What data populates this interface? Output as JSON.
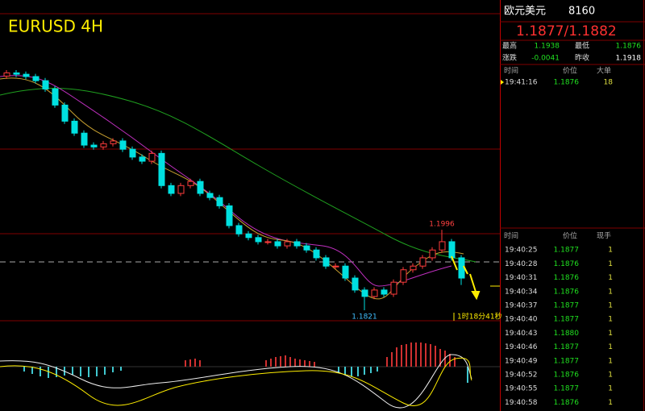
{
  "header": {
    "title": "EURUSD 4H"
  },
  "chart": {
    "candles": [
      [
        1.233,
        1.2343,
        1.2324,
        1.2337
      ],
      [
        1.2337,
        1.2343,
        1.2328,
        1.2334
      ],
      [
        1.2334,
        1.234,
        1.2323,
        1.2329
      ],
      [
        1.2329,
        1.2335,
        1.2314,
        1.232
      ],
      [
        1.232,
        1.2326,
        1.2296,
        1.2302
      ],
      [
        1.2302,
        1.2308,
        1.2261,
        1.2267
      ],
      [
        1.2267,
        1.2273,
        1.2226,
        1.2232
      ],
      [
        1.2232,
        1.2238,
        1.22,
        1.2206
      ],
      [
        1.2206,
        1.2212,
        1.2174,
        1.218
      ],
      [
        1.218,
        1.2186,
        1.217,
        1.2176
      ],
      [
        1.2176,
        1.2189,
        1.217,
        1.2183
      ],
      [
        1.2183,
        1.2195,
        1.2177,
        1.2189
      ],
      [
        1.2189,
        1.2195,
        1.2165,
        1.2171
      ],
      [
        1.2171,
        1.2177,
        1.2148,
        1.2154
      ],
      [
        1.2154,
        1.216,
        1.2139,
        1.2145
      ],
      [
        1.2145,
        1.2168,
        1.2139,
        1.2162
      ],
      [
        1.2162,
        1.2168,
        1.2086,
        1.2092
      ],
      [
        1.2092,
        1.2098,
        1.2069,
        1.2075
      ],
      [
        1.2075,
        1.2098,
        1.2069,
        1.2092
      ],
      [
        1.2092,
        1.2107,
        1.2086,
        1.2101
      ],
      [
        1.2101,
        1.2107,
        1.2069,
        1.2075
      ],
      [
        1.2075,
        1.2081,
        1.206,
        1.2066
      ],
      [
        1.2066,
        1.2072,
        1.2042,
        1.2048
      ],
      [
        1.2048,
        1.2054,
        1.1999,
        1.2005
      ],
      [
        1.2005,
        1.2011,
        1.1981,
        1.1987
      ],
      [
        1.1987,
        1.1993,
        1.1973,
        1.1979
      ],
      [
        1.1979,
        1.1985,
        1.1964,
        1.197
      ],
      [
        1.197,
        1.1976,
        1.1964,
        1.197
      ],
      [
        1.197,
        1.1976,
        1.1955,
        1.1961
      ],
      [
        1.1961,
        1.1976,
        1.1955,
        1.197
      ],
      [
        1.197,
        1.1976,
        1.1955,
        1.1961
      ],
      [
        1.1961,
        1.1967,
        1.1946,
        1.1952
      ],
      [
        1.1952,
        1.1958,
        1.1929,
        1.1935
      ],
      [
        1.1935,
        1.1941,
        1.1911,
        1.1917
      ],
      [
        1.1917,
        1.1923,
        1.1911,
        1.1917
      ],
      [
        1.1917,
        1.1923,
        1.1885,
        1.1891
      ],
      [
        1.1891,
        1.1897,
        1.1859,
        1.1865
      ],
      [
        1.1865,
        1.1871,
        1.1821,
        1.1851
      ],
      [
        1.1851,
        1.1871,
        1.1845,
        1.1865
      ],
      [
        1.1865,
        1.1871,
        1.185,
        1.1856
      ],
      [
        1.1856,
        1.1888,
        1.185,
        1.1882
      ],
      [
        1.1882,
        1.1915,
        1.1876,
        1.1909
      ],
      [
        1.1909,
        1.1923,
        1.1903,
        1.1917
      ],
      [
        1.1917,
        1.1941,
        1.1911,
        1.1935
      ],
      [
        1.1935,
        1.1958,
        1.1929,
        1.1952
      ],
      [
        1.1952,
        1.1996,
        1.1946,
        1.197
      ],
      [
        1.197,
        1.1976,
        1.1929,
        1.1935
      ],
      [
        1.1935,
        1.1941,
        1.1876,
        1.1891
      ]
    ],
    "countdown": "1时18分41秒"
  },
  "quote": {
    "name": "欧元美元",
    "code": "8160",
    "price": "1.1877/1.1882",
    "stats": [
      [
        "最高",
        "1.1938",
        "最低",
        "1.1876"
      ],
      [
        "涨跌",
        "-0.0041",
        "昨收",
        "1.1918"
      ]
    ]
  },
  "big_orders": {
    "columns": [
      "时间",
      "价位",
      "大单"
    ],
    "rows": [
      [
        "19:41:16",
        "1.1876",
        "18"
      ]
    ]
  },
  "ticks": {
    "columns": [
      "时间",
      "价位",
      "现手"
    ],
    "rows": [
      [
        "19:40:25",
        "1.1877",
        "1"
      ],
      [
        "19:40:28",
        "1.1876",
        "1"
      ],
      [
        "19:40:31",
        "1.1876",
        "1"
      ],
      [
        "19:40:34",
        "1.1876",
        "1"
      ],
      [
        "19:40:37",
        "1.1877",
        "1"
      ],
      [
        "19:40:40",
        "1.1877",
        "1"
      ],
      [
        "19:40:43",
        "1.1880",
        "1"
      ],
      [
        "19:40:46",
        "1.1877",
        "1"
      ],
      [
        "19:40:49",
        "1.1877",
        "1"
      ],
      [
        "19:40:52",
        "1.1876",
        "1"
      ],
      [
        "19:40:55",
        "1.1877",
        "1"
      ],
      [
        "19:40:58",
        "1.1876",
        "1"
      ]
    ]
  }
}
